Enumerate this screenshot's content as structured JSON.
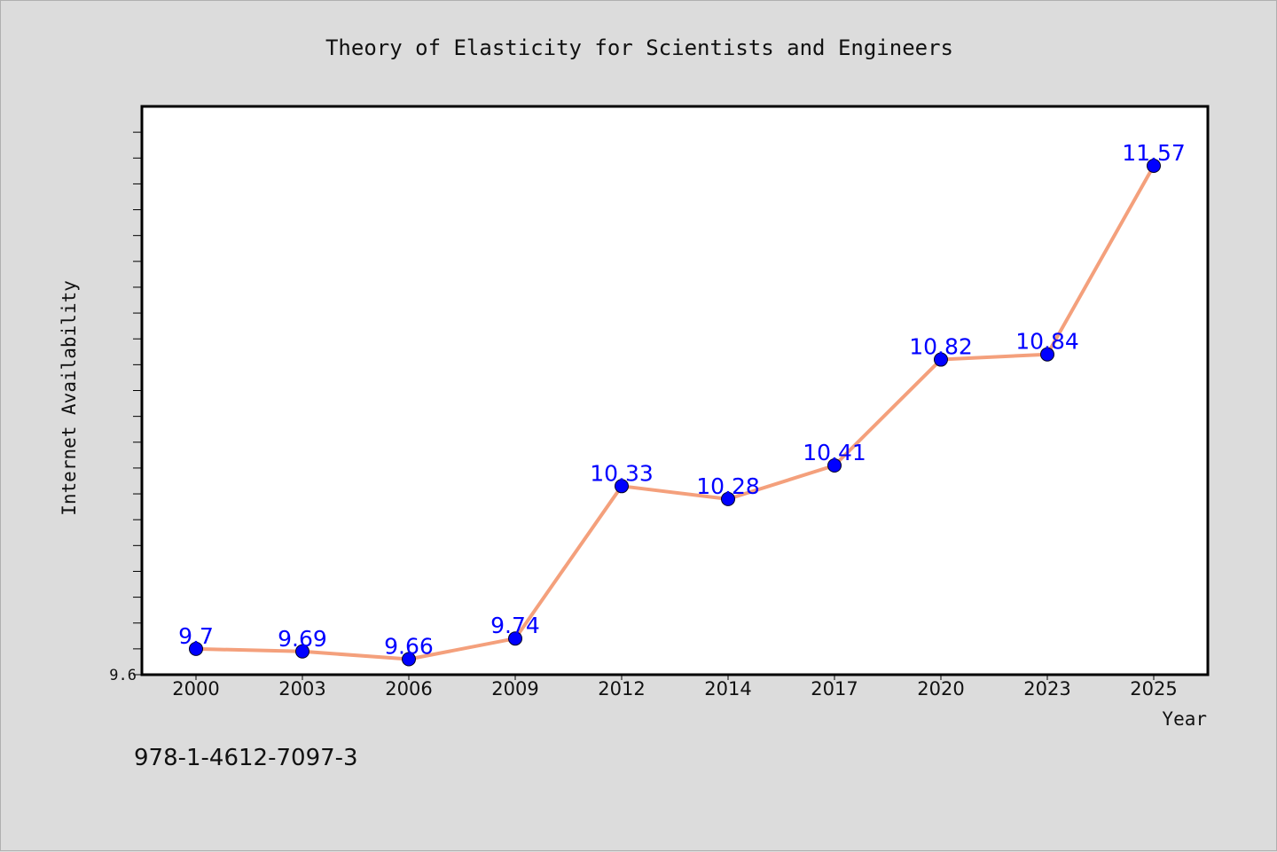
{
  "chart_data": {
    "type": "line",
    "title": "Theory of Elasticity for Scientists and Engineers",
    "xlabel": "Year",
    "ylabel": "Internet Availability",
    "categories": [
      "2000",
      "2003",
      "2006",
      "2009",
      "2012",
      "2014",
      "2017",
      "2020",
      "2023",
      "2025"
    ],
    "series": [
      {
        "values": [
          9.7,
          9.69,
          9.66,
          9.74,
          10.33,
          10.28,
          10.41,
          10.82,
          10.84,
          11.57
        ],
        "labels": [
          "9.7",
          "9.69",
          "9.66",
          "9.74",
          "10.33",
          "10.28",
          "10.41",
          "10.82",
          "10.84",
          "11.57"
        ],
        "line_color": "#f4a07c",
        "marker_color": "#0000ff"
      }
    ],
    "y_tick_labels": [
      "9.6"
    ],
    "ylim": [
      9.6,
      11.8
    ],
    "grid": false,
    "legend": "none",
    "footer": "978-1-4612-7097-3"
  },
  "colors": {
    "background": "#dcdcdc",
    "plot_background": "#ffffff",
    "line": "#f4a07c",
    "marker": "#0000ff",
    "data_label": "#0000ff"
  }
}
